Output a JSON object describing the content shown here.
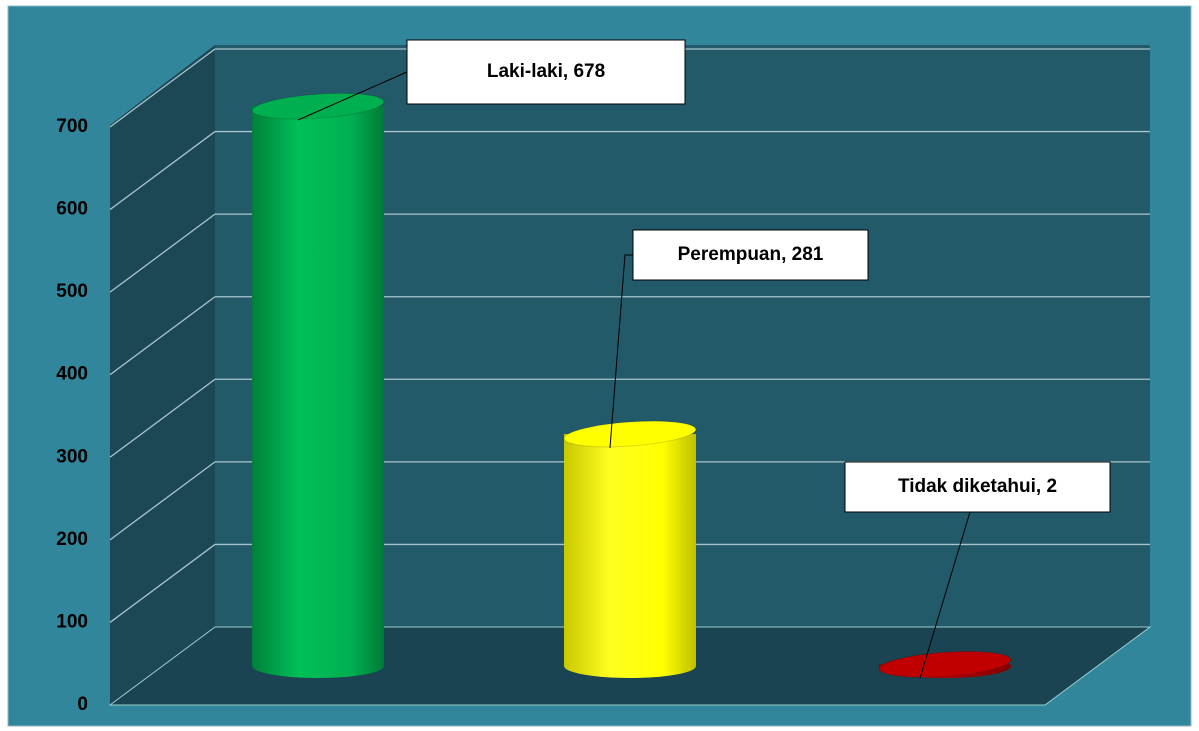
{
  "chart_data": {
    "type": "bar3d",
    "values": [
      678,
      281,
      2
    ],
    "value_labels": [
      "Laki-laki, 678",
      "Perempuan, 281",
      "Tidak diketahui, 2"
    ],
    "colors": [
      "#00b050",
      "#ffff00",
      "#c00000"
    ],
    "ylim": [
      0,
      700
    ],
    "yticks": [
      0,
      100,
      200,
      300,
      400,
      500,
      600,
      700
    ],
    "grid": true
  }
}
